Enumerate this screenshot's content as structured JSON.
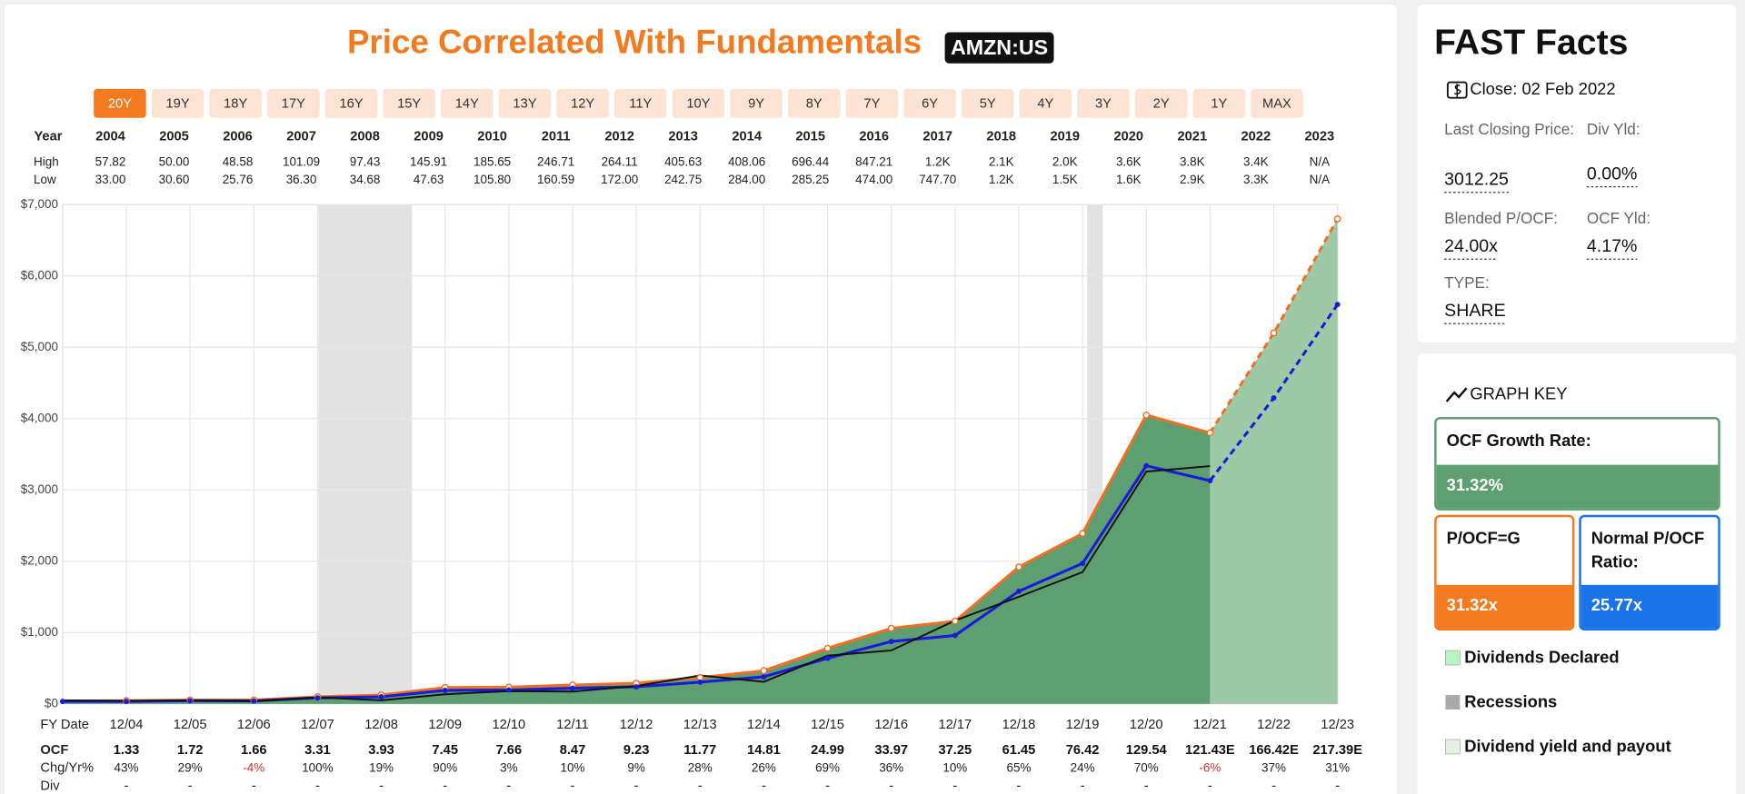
{
  "header": {
    "title": "Price Correlated With Fundamentals",
    "ticker": "AMZN:US"
  },
  "range_buttons": {
    "labels": [
      "20Y",
      "19Y",
      "18Y",
      "17Y",
      "16Y",
      "15Y",
      "14Y",
      "13Y",
      "12Y",
      "11Y",
      "10Y",
      "9Y",
      "8Y",
      "7Y",
      "6Y",
      "5Y",
      "4Y",
      "3Y",
      "2Y",
      "1Y",
      "MAX"
    ],
    "active": 0
  },
  "year_table": {
    "year_label": "Year",
    "high_label": "High",
    "low_label": "Low",
    "years": [
      "2004",
      "2005",
      "2006",
      "2007",
      "2008",
      "2009",
      "2010",
      "2011",
      "2012",
      "2013",
      "2014",
      "2015",
      "2016",
      "2017",
      "2018",
      "2019",
      "2020",
      "2021",
      "2022",
      "2023"
    ],
    "high": [
      "57.82",
      "50.00",
      "48.58",
      "101.09",
      "97.43",
      "145.91",
      "185.65",
      "246.71",
      "264.11",
      "405.63",
      "408.06",
      "696.44",
      "847.21",
      "1.2K",
      "2.1K",
      "2.0K",
      "3.6K",
      "3.8K",
      "3.4K",
      "N/A"
    ],
    "low": [
      "33.00",
      "30.60",
      "25.76",
      "36.30",
      "34.68",
      "47.63",
      "105.80",
      "160.59",
      "172.00",
      "242.75",
      "284.00",
      "285.25",
      "474.00",
      "747.70",
      "1.2K",
      "1.5K",
      "1.6K",
      "2.9K",
      "3.3K",
      "N/A"
    ]
  },
  "chart_data": {
    "type": "line",
    "categories": [
      null,
      "12/04",
      "12/05",
      "12/06",
      "12/07",
      "12/08",
      "12/09",
      "12/10",
      "12/11",
      "12/12",
      "12/13",
      "12/14",
      "12/15",
      "12/16",
      "12/17",
      "12/18",
      "12/19",
      "12/20",
      "12/21",
      "12/22",
      "12/23"
    ],
    "series": [
      {
        "name": "P/OCF=G",
        "color": "#f26f21",
        "values": [
          40,
          45,
          55,
          55,
          100,
          125,
          230,
          235,
          265,
          290,
          370,
          465,
          780,
          1060,
          1160,
          1920,
          2390,
          4050,
          3800,
          5200,
          6800
        ]
      },
      {
        "name": "Normal P/OCF Ratio:",
        "color": "#1a1adb",
        "values": [
          35,
          35,
          45,
          42,
          85,
          100,
          190,
          195,
          220,
          240,
          305,
          380,
          640,
          875,
          960,
          1580,
          1970,
          3340,
          3130,
          4290,
          5600
        ]
      },
      {
        "color": "#111111",
        "values": [
          50,
          45,
          48,
          39,
          92,
          51,
          135,
          180,
          173,
          251,
          399,
          310,
          676,
          750,
          1169,
          1502,
          1848,
          3257,
          3334,
          null,
          null
        ]
      }
    ],
    "area_color": "#5e9f72",
    "forecast_area_color": "#9dc9a6",
    "ylim": [
      0,
      7000
    ],
    "yticks": [
      {
        "value": 0,
        "label": "$0"
      },
      {
        "value": 1000,
        "label": "$1,000"
      },
      {
        "value": 2000,
        "label": "$2,000"
      },
      {
        "value": 3000,
        "label": "$3,000"
      },
      {
        "value": 4000,
        "label": "$4,000"
      },
      {
        "value": 5000,
        "label": "$5,000"
      },
      {
        "value": 6000,
        "label": "$6,000"
      },
      {
        "value": 7000,
        "label": "$7,000"
      }
    ],
    "grid": true
  },
  "fiscal_table": {
    "date_label": "FY Date",
    "ocf_label": "OCF",
    "chg_label": "Chg/Yr%",
    "div_label": "Div",
    "ocf": [
      "1.33",
      "1.72",
      "1.66",
      "3.31",
      "3.93",
      "7.45",
      "7.66",
      "8.47",
      "9.23",
      "11.77",
      "14.81",
      "24.99",
      "33.97",
      "37.25",
      "61.45",
      "76.42",
      "129.54",
      "121.43E",
      "166.42E",
      "217.39E"
    ],
    "chg": [
      "43%",
      "29%",
      "-4%",
      "100%",
      "19%",
      "90%",
      "3%",
      "10%",
      "9%",
      "28%",
      "26%",
      "69%",
      "36%",
      "10%",
      "65%",
      "24%",
      "70%",
      "-6%",
      "37%",
      "31%"
    ],
    "div": [
      "-",
      "-",
      "-",
      "-",
      "-",
      "-",
      "-",
      "-",
      "-",
      "-",
      "-",
      "-",
      "-",
      "-",
      "-",
      "-",
      "-",
      "-",
      "-",
      "-"
    ]
  },
  "fast_facts": {
    "title": "FAST Facts",
    "close": "Close: 02 Feb 2022",
    "items": [
      {
        "label": "Last Closing Price:",
        "value": "3012.25"
      },
      {
        "label": "Div Yld:",
        "value": "0.00%"
      },
      {
        "label": "Blended P/OCF:",
        "value": "24.00x"
      },
      {
        "label": "OCF Yld:",
        "value": "4.17%"
      },
      {
        "label": "TYPE:",
        "value": "SHARE"
      }
    ]
  },
  "graph_key": {
    "title": "GRAPH KEY",
    "growth_label": "OCF Growth Rate:",
    "growth_value": "31.32%",
    "pocf_value": "31.32x",
    "normal_value": "25.77x",
    "legend": [
      "Dividends Declared",
      "Recessions",
      "Dividend yield and payout"
    ]
  }
}
